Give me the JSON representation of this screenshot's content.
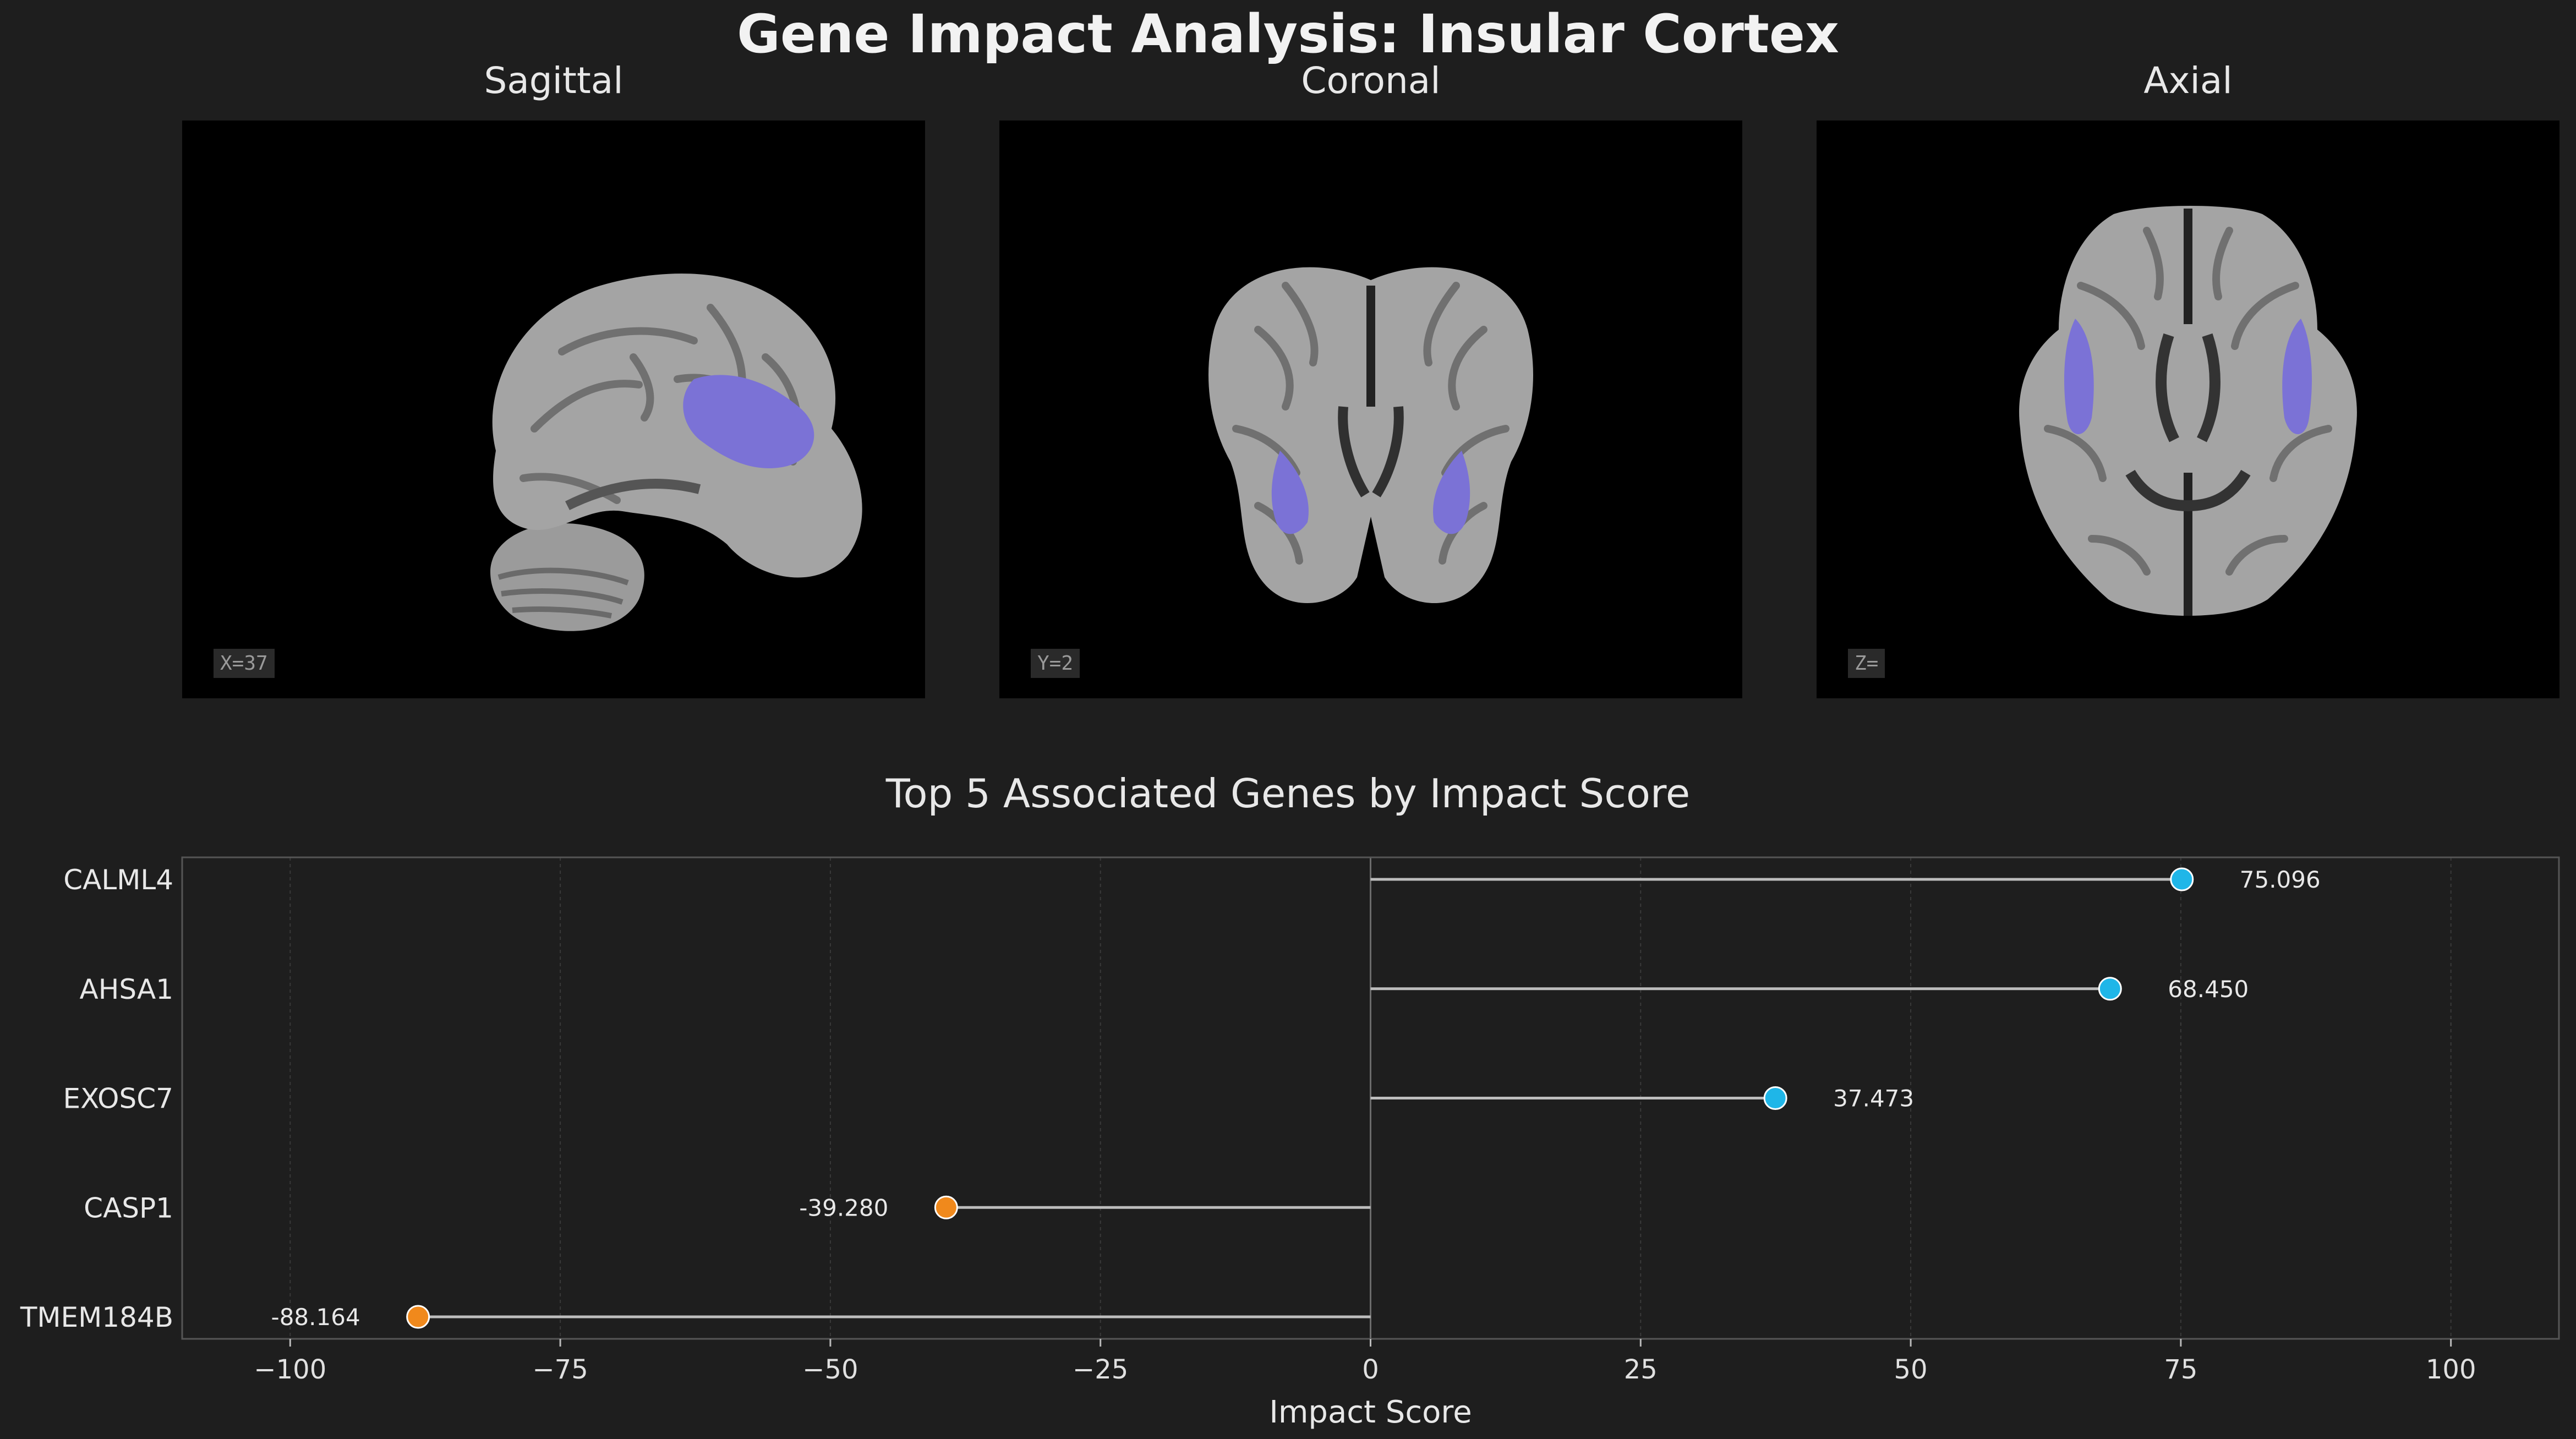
{
  "title": "Gene Impact Analysis: Insular Cortex",
  "brain_views": [
    {
      "name": "Sagittal",
      "coord": "X=37"
    },
    {
      "name": "Coronal",
      "coord": "Y=2"
    },
    {
      "name": "Axial",
      "coord": "Z="
    }
  ],
  "colors": {
    "background": "#1e1e1e",
    "highlight": "#7b72d6",
    "positive": "#1fb6e8",
    "negative": "#f0891c",
    "stem": "#bdbdbd"
  },
  "chart_data": {
    "type": "lollipop",
    "title": "Top 5 Associated Genes by Impact Score",
    "xlabel": "Impact Score",
    "ylabel": "",
    "categories": [
      "CALML4",
      "AHSA1",
      "EXOSC7",
      "CASP1",
      "TMEM184B"
    ],
    "values": [
      75.096,
      68.45,
      37.473,
      -39.28,
      -88.164
    ],
    "value_labels": [
      "75.096",
      "68.450",
      "37.473",
      "-39.280",
      "-88.164"
    ],
    "xlim": [
      -110,
      110
    ],
    "xticks": [
      -100,
      -75,
      -50,
      -25,
      0,
      25,
      50,
      75,
      100
    ],
    "xtick_labels": [
      "−100",
      "−75",
      "−50",
      "−25",
      "0",
      "25",
      "50",
      "75",
      "100"
    ],
    "grid": true
  }
}
